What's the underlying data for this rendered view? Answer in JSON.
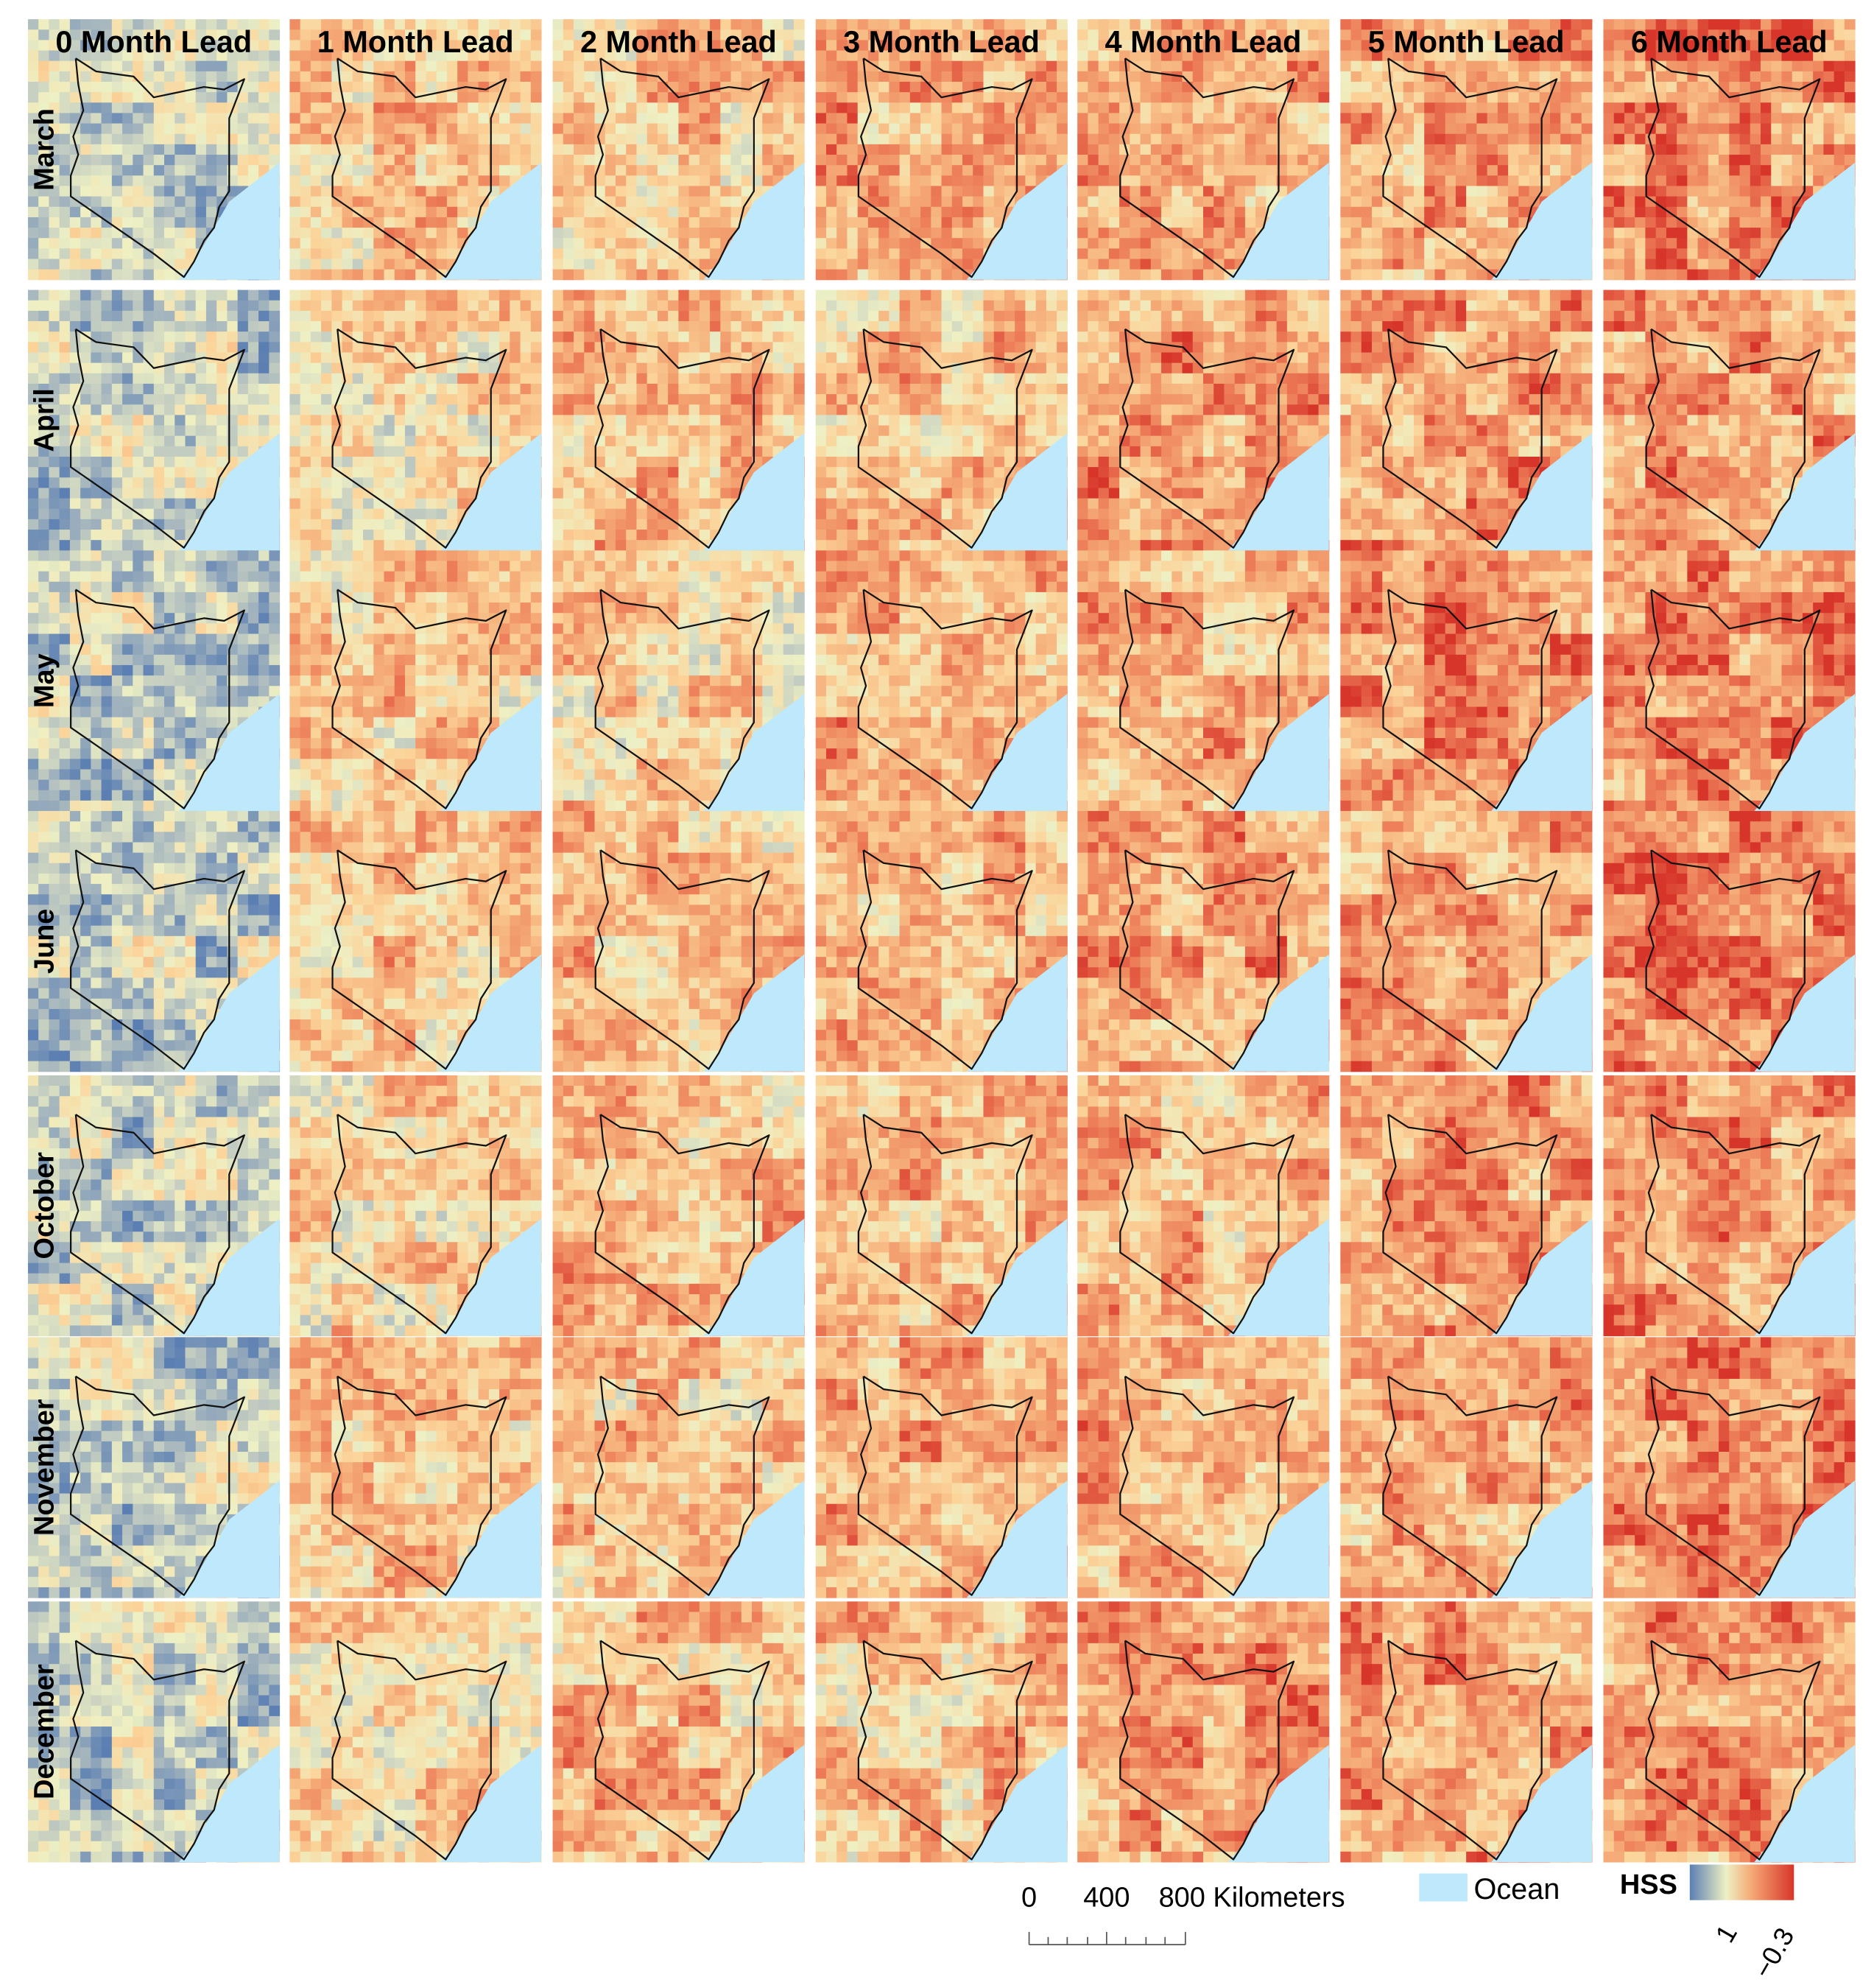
{
  "column_headers": [
    "0 Month Lead",
    "1 Month Lead",
    "2 Month Lead",
    "3 Month Lead",
    "4 Month Lead",
    "5 Month Lead",
    "6 Month Lead"
  ],
  "row_labels": [
    "March",
    "April",
    "May",
    "June",
    "October",
    "November",
    "December"
  ],
  "scale_bar": {
    "labels": [
      "0",
      "400",
      "800 Kilometers"
    ]
  },
  "legend": {
    "ocean": "Ocean",
    "title": "HSS",
    "colorbar_labels": [
      "1",
      "−0.3"
    ]
  }
}
